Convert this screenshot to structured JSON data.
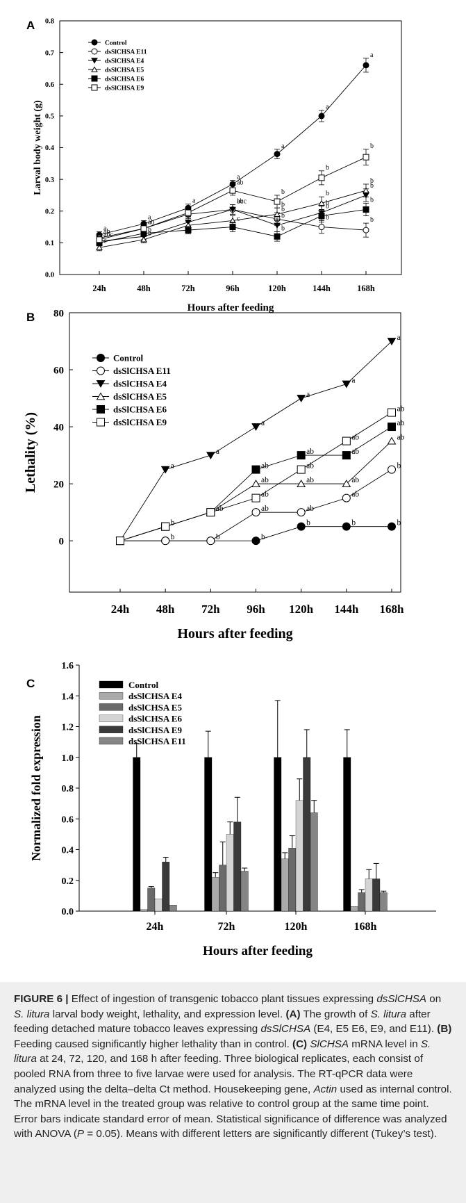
{
  "chart_data": [
    {
      "panel": "A",
      "type": "line",
      "xlabel": "Hours after feeding",
      "ylabel": "Larval body weight (g)",
      "categories": [
        "24h",
        "48h",
        "72h",
        "96h",
        "120h",
        "144h",
        "168h"
      ],
      "ylim": [
        0,
        0.8
      ],
      "yticks": [
        "0.0",
        "0.1",
        "0.2",
        "0.3",
        "0.4",
        "0.5",
        "0.6",
        "0.7",
        "0.8"
      ],
      "legend": "top-left",
      "grid": false,
      "series": [
        {
          "name": "Control",
          "marker": "circle-filled",
          "values": [
            0.125,
            0.16,
            0.21,
            0.285,
            0.38,
            0.5,
            0.66
          ],
          "errors": [
            0.01,
            0.01,
            0.012,
            0.012,
            0.015,
            0.018,
            0.022
          ],
          "letters": [
            "a",
            "a",
            "a",
            "a",
            "a",
            "a",
            "a"
          ]
        },
        {
          "name": "dsSlCHSA E11",
          "marker": "circle-open",
          "values": [
            0.115,
            0.145,
            0.19,
            0.205,
            0.175,
            0.15,
            0.14
          ],
          "errors": [
            0.01,
            0.01,
            0.012,
            0.015,
            0.02,
            0.02,
            0.022
          ],
          "letters": [
            "ab",
            "ab",
            "",
            "abc",
            "b",
            "b",
            "b"
          ]
        },
        {
          "name": "dsSlCHSA E4",
          "marker": "triangle-down-filled",
          "values": [
            0.105,
            0.12,
            0.165,
            0.205,
            0.155,
            0.195,
            0.25
          ],
          "errors": [
            0.01,
            0.01,
            0.012,
            0.015,
            0.02,
            0.02,
            0.02
          ],
          "letters": [
            "abc",
            "b",
            "",
            "bc",
            "b",
            "b",
            "b"
          ]
        },
        {
          "name": "dsSlCHSA E5",
          "marker": "triangle-up-open",
          "values": [
            0.085,
            0.11,
            0.155,
            0.17,
            0.19,
            0.225,
            0.265
          ],
          "errors": [
            0.01,
            0.01,
            0.012,
            0.015,
            0.02,
            0.02,
            0.02
          ],
          "letters": [
            "c",
            "b",
            "",
            "",
            "b",
            "b",
            "b"
          ]
        },
        {
          "name": "dsSlCHSA E6",
          "marker": "square-filled",
          "values": [
            0.1,
            0.13,
            0.14,
            0.15,
            0.12,
            0.185,
            0.205
          ],
          "errors": [
            0.01,
            0.01,
            0.012,
            0.015,
            0.015,
            0.02,
            0.02
          ],
          "letters": [
            "",
            "",
            "",
            "c",
            "b",
            "b",
            "b"
          ]
        },
        {
          "name": "dsSlCHSA E9",
          "marker": "square-open",
          "values": [
            0.11,
            0.145,
            0.195,
            0.265,
            0.23,
            0.305,
            0.37
          ],
          "errors": [
            0.01,
            0.01,
            0.012,
            0.015,
            0.02,
            0.022,
            0.025
          ],
          "letters": [
            "",
            "",
            "",
            "ab",
            "b",
            "b",
            "b"
          ]
        }
      ]
    },
    {
      "panel": "B",
      "type": "line",
      "xlabel": "Hours after feeding",
      "ylabel": "Lethality (%)",
      "categories": [
        "24h",
        "48h",
        "72h",
        "96h",
        "120h",
        "144h",
        "168h"
      ],
      "ylim": [
        -18,
        80
      ],
      "yticks": [
        "0",
        "20",
        "40",
        "60",
        "80"
      ],
      "legend": "top-left",
      "grid": false,
      "series": [
        {
          "name": "Control",
          "marker": "circle-filled",
          "values": [
            0,
            0,
            0,
            0,
            5,
            5,
            5
          ],
          "letters": [
            "",
            "",
            "",
            "b",
            "b",
            "b",
            "b"
          ]
        },
        {
          "name": "dsSlCHSA E11",
          "marker": "circle-open",
          "values": [
            0,
            0,
            0,
            10,
            10,
            15,
            25
          ],
          "letters": [
            "",
            "b",
            "b",
            "ab",
            "ab",
            "ab",
            "b"
          ]
        },
        {
          "name": "dsSlCHSA E4",
          "marker": "triangle-down-filled",
          "values": [
            0,
            25,
            30,
            40,
            50,
            55,
            70
          ],
          "letters": [
            "",
            "a",
            "a",
            "a",
            "a",
            "a",
            "a"
          ]
        },
        {
          "name": "dsSlCHSA E5",
          "marker": "triangle-up-open",
          "values": [
            0,
            5,
            10,
            20,
            20,
            20,
            35
          ],
          "letters": [
            "",
            "",
            "",
            "ab",
            "ab",
            "ab",
            "ab"
          ]
        },
        {
          "name": "dsSlCHSA E6",
          "marker": "square-filled",
          "values": [
            0,
            5,
            10,
            25,
            30,
            30,
            40
          ],
          "letters": [
            "",
            "b",
            "ab",
            "ab",
            "ab",
            "ab",
            "ab"
          ]
        },
        {
          "name": "dsSlCHSA E9",
          "marker": "square-open",
          "values": [
            0,
            5,
            10,
            15,
            25,
            35,
            45
          ],
          "letters": [
            "",
            "",
            "",
            "ab",
            "ab",
            "ab",
            "ab"
          ]
        }
      ]
    },
    {
      "panel": "C",
      "type": "bar",
      "xlabel": "Hours after feeding",
      "ylabel": "Normalized fold expression",
      "categories": [
        "24h",
        "72h",
        "120h",
        "168h"
      ],
      "ylim": [
        0,
        1.6
      ],
      "yticks": [
        "0.0",
        "0.2",
        "0.4",
        "0.6",
        "0.8",
        "1.0",
        "1.2",
        "1.4",
        "1.6"
      ],
      "legend": "top-left",
      "grid": false,
      "series": [
        {
          "name": "Control",
          "color": "#000000",
          "values": [
            1.0,
            1.0,
            1.0,
            1.0
          ],
          "errors": [
            0.09,
            0.17,
            0.37,
            0.18
          ]
        },
        {
          "name": "dsSlCHSA E4",
          "color": "#aaaaaa",
          "values": [
            0.01,
            0.22,
            0.34,
            0.03
          ],
          "errors": [
            0.0,
            0.03,
            0.04,
            0.0
          ]
        },
        {
          "name": "dsSlCHSA E5",
          "color": "#6a6a6a",
          "values": [
            0.15,
            0.3,
            0.41,
            0.12
          ],
          "errors": [
            0.01,
            0.15,
            0.08,
            0.02
          ]
        },
        {
          "name": "dsSlCHSA E6",
          "color": "#d4d4d4",
          "values": [
            0.08,
            0.5,
            0.72,
            0.21
          ],
          "errors": [
            0.0,
            0.08,
            0.14,
            0.06
          ]
        },
        {
          "name": "dsSlCHSA E9",
          "color": "#3a3a3a",
          "values": [
            0.32,
            0.58,
            1.0,
            0.21
          ],
          "errors": [
            0.03,
            0.16,
            0.18,
            0.1
          ]
        },
        {
          "name": "dsSlCHSA E11",
          "color": "#858585",
          "values": [
            0.04,
            0.26,
            0.64,
            0.12
          ],
          "errors": [
            0.0,
            0.02,
            0.08,
            0.01
          ]
        }
      ]
    }
  ],
  "caption": {
    "segments": [
      {
        "t": "FIGURE 6 |",
        "b": true
      },
      {
        "t": " Effect of ingestion of transgenic tobacco plant tissues expressing "
      },
      {
        "t": "dsSlCHSA",
        "i": true
      },
      {
        "t": " on "
      },
      {
        "t": "S. litura",
        "i": true
      },
      {
        "t": " larval body weight, lethality, and expression level. "
      },
      {
        "t": "(A)",
        "b": true
      },
      {
        "t": " The growth of "
      },
      {
        "t": "S. litura",
        "i": true
      },
      {
        "t": " after feeding detached mature tobacco leaves expressing "
      },
      {
        "t": "dsSlCHSA",
        "i": true
      },
      {
        "t": " (E4, E5 E6, E9, and E11). "
      },
      {
        "t": "(B)",
        "b": true
      },
      {
        "t": " Feeding caused significantly higher lethality than in control. "
      },
      {
        "t": "(C)",
        "b": true
      },
      {
        "t": " "
      },
      {
        "t": "SlCHSA",
        "i": true
      },
      {
        "t": " mRNA level in "
      },
      {
        "t": "S. litura",
        "i": true
      },
      {
        "t": " at 24, 72, 120, and 168 h after feeding. Three biological replicates, each consist of pooled RNA from three to five larvae were used for analysis. The RT-qPCR data were analyzed using the delta–delta Ct method. Housekeeping gene, "
      },
      {
        "t": "Actin",
        "i": true
      },
      {
        "t": " used as internal control. The mRNA level in the treated group was relative to control group at the same time point. Error bars indicate standard error of mean. Statistical significance of difference was analyzed with ANOVA ("
      },
      {
        "t": "P",
        "i": true
      },
      {
        "t": " = 0.05). Means with different letters are significantly different (Tukey’s test)."
      }
    ]
  }
}
